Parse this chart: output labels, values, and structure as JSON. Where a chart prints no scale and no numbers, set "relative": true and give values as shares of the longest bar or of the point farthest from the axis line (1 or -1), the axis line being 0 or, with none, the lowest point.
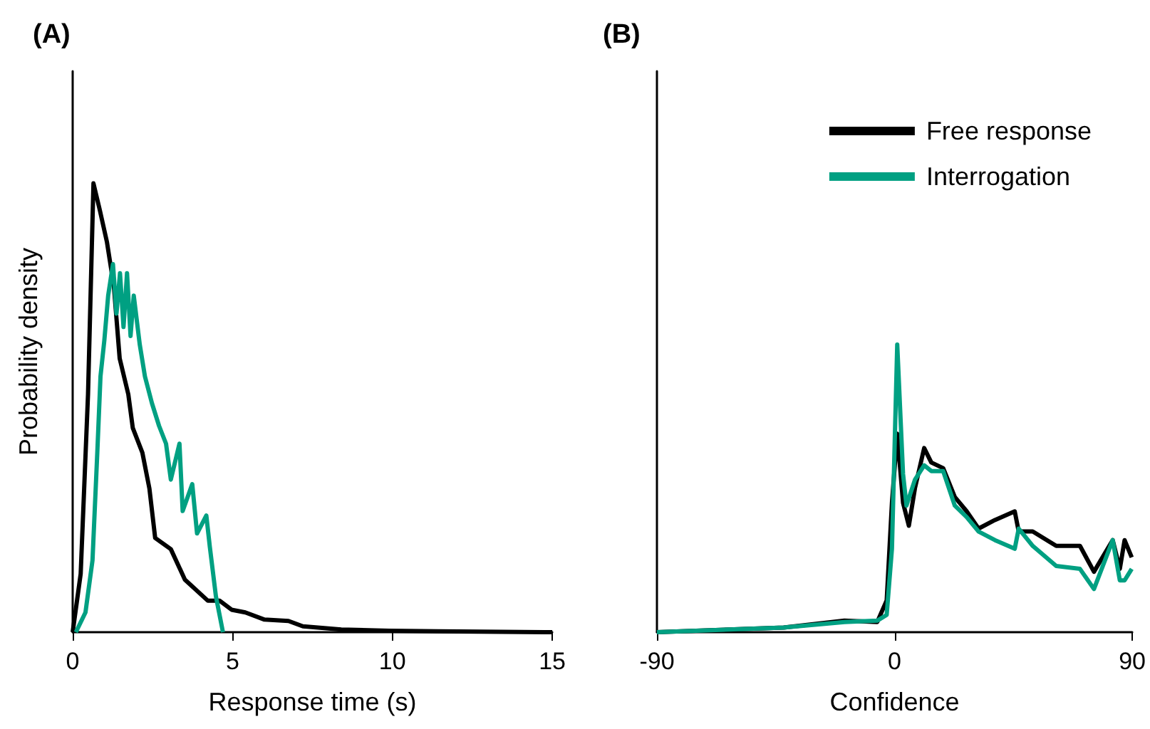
{
  "chart_data": [
    {
      "type": "line",
      "title": "(A)",
      "xlabel": "Response time (s)",
      "ylabel": "Probability density",
      "relative": true,
      "xlim": [
        0,
        15
      ],
      "xticks": [
        0,
        5,
        10,
        15
      ],
      "tick_labels": "x",
      "grid": false,
      "legend": false,
      "marker": "none",
      "line_style": "solid",
      "series": [
        {
          "color": "#000000",
          "x": [
            0,
            0.25,
            0.48,
            0.65,
            0.85,
            1.07,
            1.29,
            1.47,
            1.74,
            1.88,
            2.18,
            2.4,
            2.58,
            3.07,
            3.51,
            4.23,
            4.6,
            4.97,
            5.4,
            6.0,
            6.75,
            7.2,
            8.4,
            9.9,
            11.4,
            15
          ],
          "values": [
            0,
            0.13,
            0.53,
            1.0,
            0.94,
            0.87,
            0.77,
            0.61,
            0.53,
            0.455,
            0.4,
            0.32,
            0.21,
            0.185,
            0.117,
            0.07,
            0.07,
            0.05,
            0.044,
            0.028,
            0.025,
            0.013,
            0.006,
            0.003,
            0.002,
            0
          ]
        },
        {
          "color": "#00a082",
          "x": [
            0.1,
            0.4,
            0.62,
            0.77,
            0.87,
            0.99,
            1.11,
            1.26,
            1.37,
            1.48,
            1.59,
            1.7,
            1.81,
            1.91,
            2.1,
            2.26,
            2.48,
            2.7,
            2.92,
            3.07,
            3.34,
            3.44,
            3.74,
            3.89,
            4.18,
            4.29,
            4.48,
            4.7
          ],
          "values": [
            0,
            0.044,
            0.16,
            0.4,
            0.57,
            0.65,
            0.75,
            0.82,
            0.71,
            0.8,
            0.68,
            0.8,
            0.66,
            0.75,
            0.64,
            0.57,
            0.51,
            0.46,
            0.42,
            0.34,
            0.42,
            0.27,
            0.33,
            0.22,
            0.26,
            0.19,
            0.08,
            0
          ]
        }
      ]
    },
    {
      "type": "line",
      "title": "(B)",
      "xlabel": "Confidence",
      "relative": true,
      "xlim": [
        -90,
        90
      ],
      "xticks": [
        -90,
        0,
        90
      ],
      "tick_labels": "x",
      "grid": false,
      "legend": "top right",
      "marker": "none",
      "line_style": "solid",
      "series": [
        {
          "name": "Free response",
          "color": "#000000",
          "x": [
            -90,
            -42,
            -19,
            -6.6,
            -3,
            -1,
            1,
            3.2,
            5.4,
            7.7,
            11.2,
            13.9,
            18.4,
            22.8,
            27.3,
            31.8,
            38,
            45.5,
            47,
            52.3,
            61.2,
            70.2,
            75.5,
            82.6,
            85.3,
            87.1,
            89.8
          ],
          "values": [
            0,
            0.016,
            0.04,
            0.035,
            0.11,
            0.45,
            0.69,
            0.45,
            0.37,
            0.5,
            0.64,
            0.59,
            0.57,
            0.47,
            0.42,
            0.36,
            0.39,
            0.42,
            0.35,
            0.35,
            0.3,
            0.3,
            0.21,
            0.32,
            0.22,
            0.32,
            0.26
          ]
        },
        {
          "name": "Interrogation",
          "color": "#00a082",
          "x": [
            -90,
            -42,
            -19,
            -6.6,
            -3,
            -1,
            1,
            3.2,
            4.5,
            7.7,
            11.2,
            13.9,
            18.4,
            22.8,
            27.3,
            31.8,
            38,
            45.5,
            47,
            52.3,
            61.2,
            70.2,
            75.5,
            82.6,
            85.3,
            87.1,
            89.8
          ],
          "values": [
            0,
            0.016,
            0.035,
            0.04,
            0.06,
            0.29,
            1.0,
            0.55,
            0.44,
            0.53,
            0.58,
            0.56,
            0.56,
            0.44,
            0.4,
            0.35,
            0.32,
            0.29,
            0.36,
            0.3,
            0.23,
            0.22,
            0.15,
            0.32,
            0.18,
            0.18,
            0.22
          ]
        }
      ]
    }
  ]
}
